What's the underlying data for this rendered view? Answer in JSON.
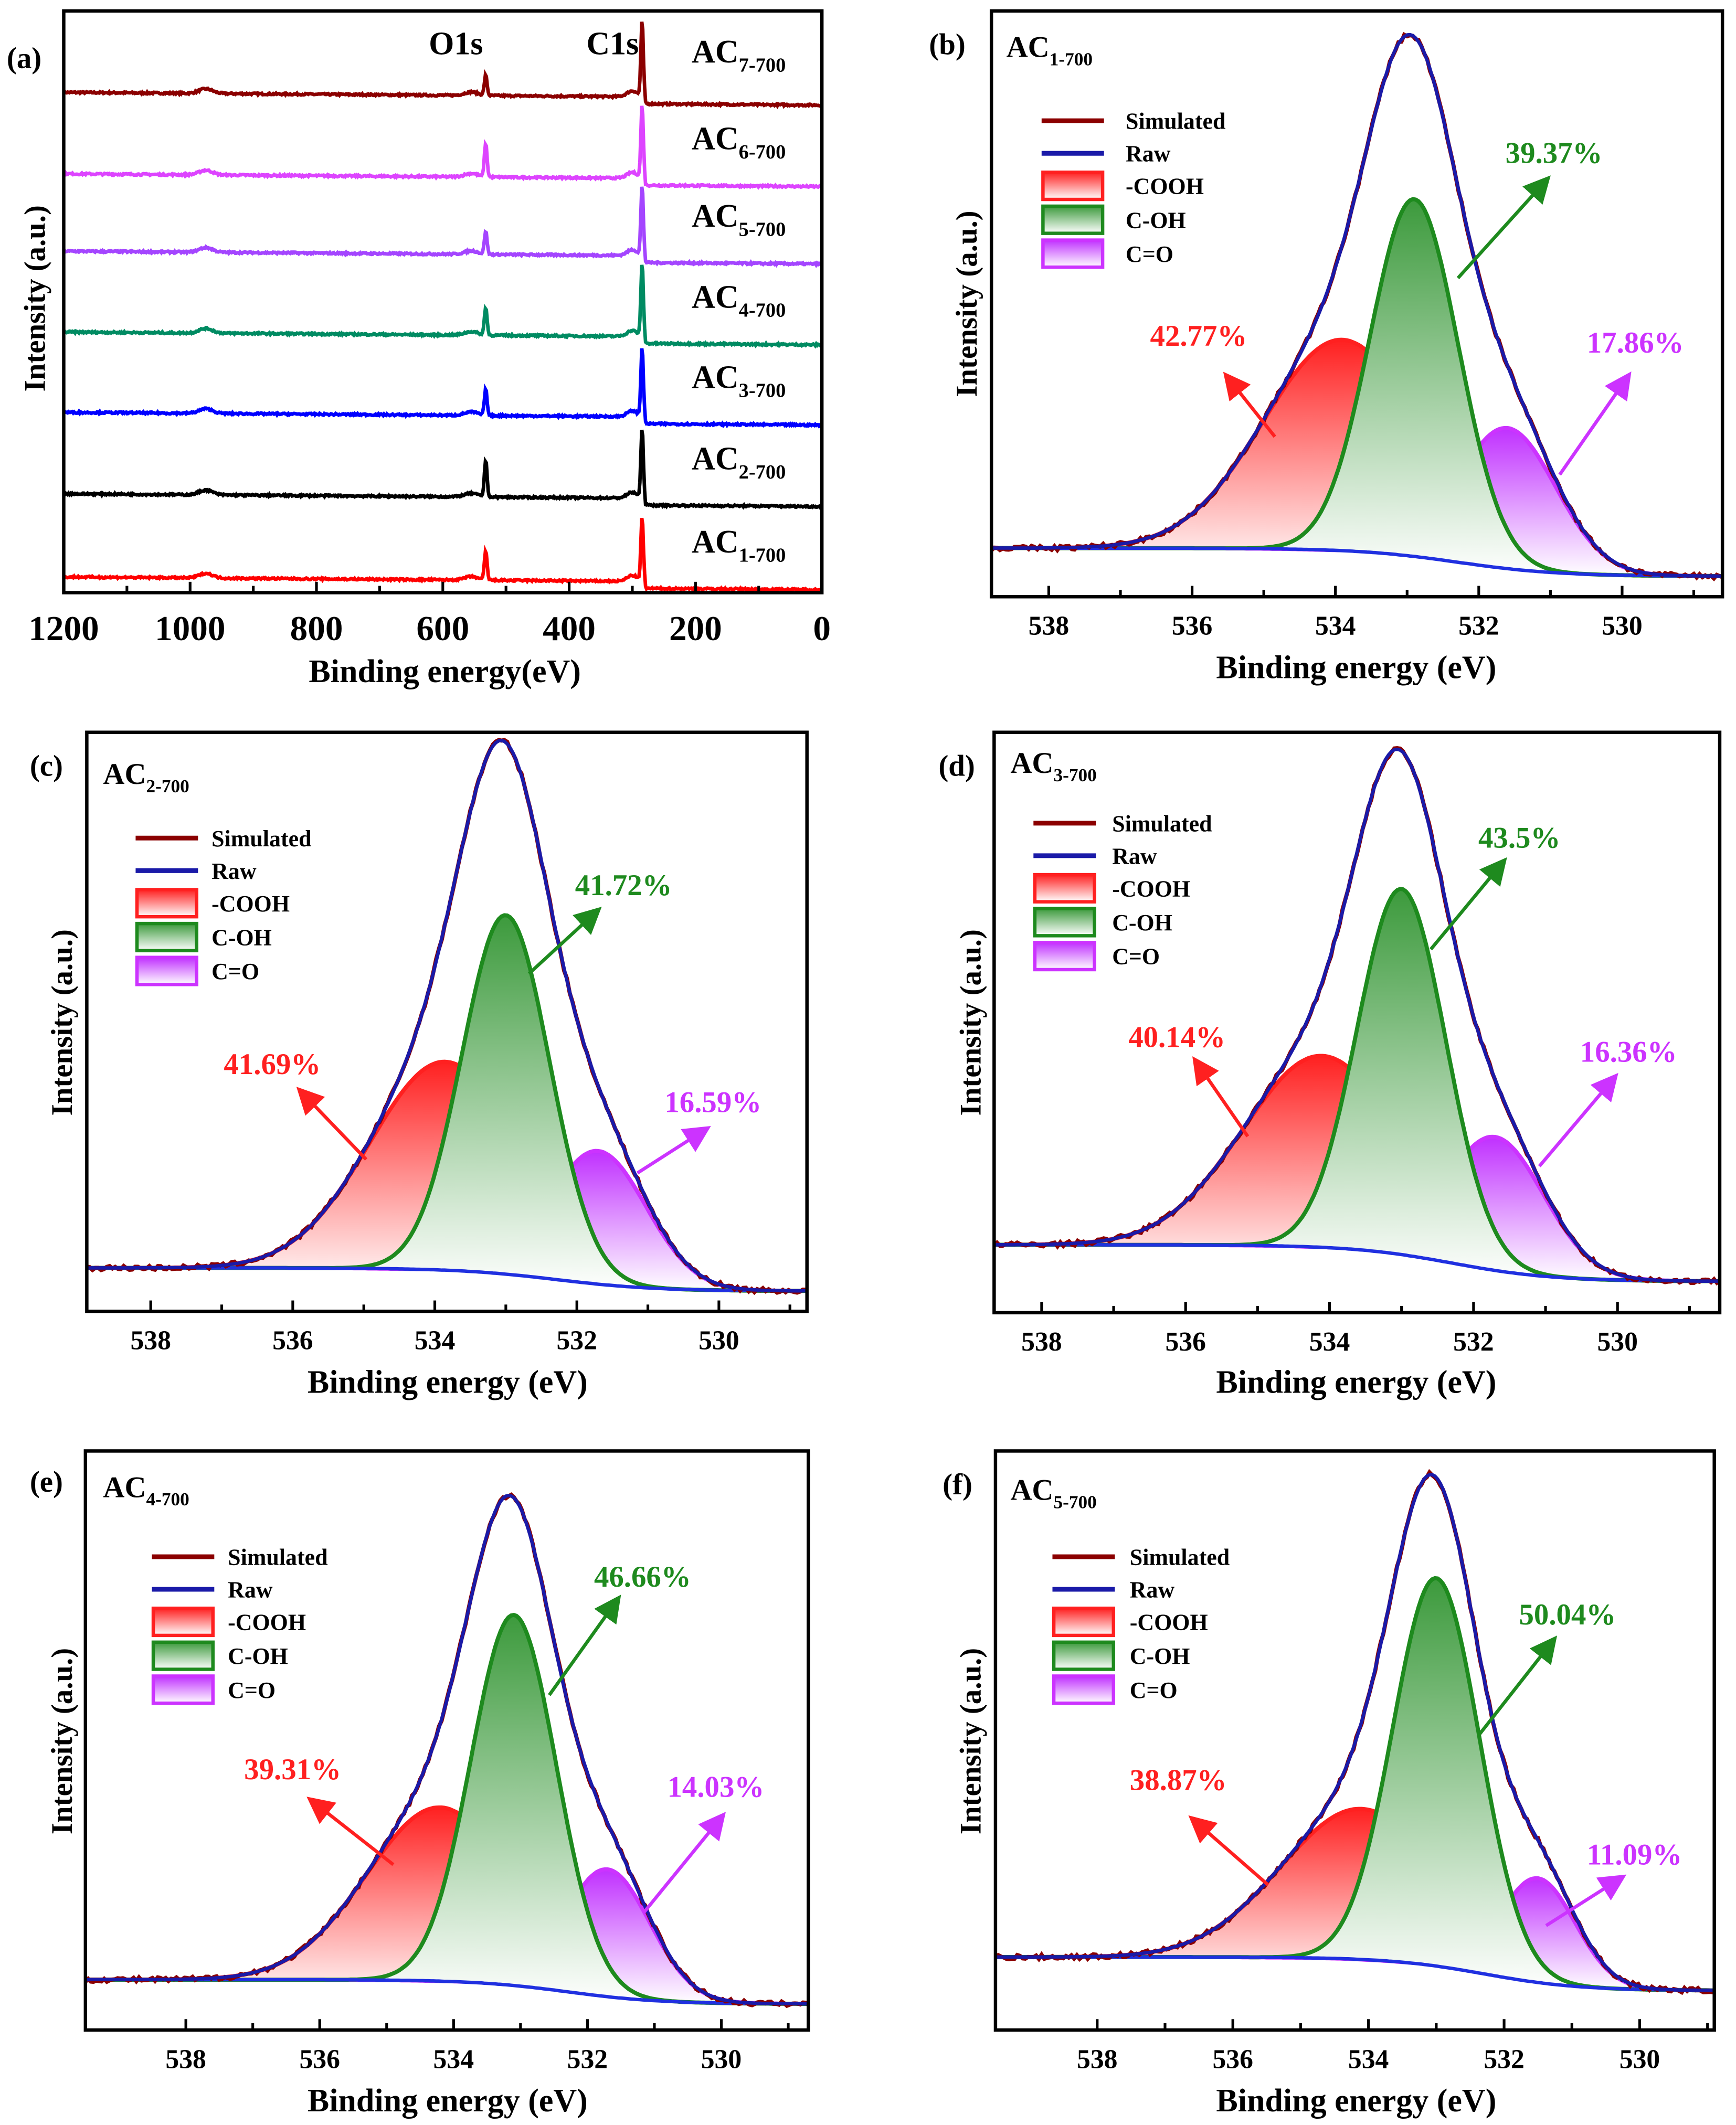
{
  "chart_data": [
    {
      "panel": "(a)",
      "type": "line",
      "xlabel": "Binding energy(eV)",
      "ylabel": "Intensity (a.u.)",
      "xlim": [
        1200,
        0
      ],
      "xticks": [
        1200,
        1000,
        800,
        600,
        400,
        200,
        0
      ],
      "peak_labels": [
        {
          "text": "O1s",
          "x": 532
        },
        {
          "text": "C1s",
          "x": 284
        }
      ],
      "series": [
        {
          "name": "AC",
          "sub": "7-700",
          "color": "#8b0000",
          "offset": 0.86,
          "o1s": 0.035,
          "c1s": 0.13
        },
        {
          "name": "AC",
          "sub": "6-700",
          "color": "#dd44ff",
          "offset": 0.72,
          "o1s": 0.058,
          "c1s": 0.126
        },
        {
          "name": "AC",
          "sub": "5-700",
          "color": "#a445ff",
          "offset": 0.587,
          "o1s": 0.04,
          "c1s": 0.12
        },
        {
          "name": "AC",
          "sub": "4-700",
          "color": "#008b62",
          "offset": 0.448,
          "o1s": 0.048,
          "c1s": 0.126
        },
        {
          "name": "AC",
          "sub": "3-700",
          "color": "#0000ff",
          "offset": 0.31,
          "o1s": 0.045,
          "c1s": 0.12
        },
        {
          "name": "AC",
          "sub": "2-700",
          "color": "#000000",
          "offset": 0.17,
          "o1s": 0.063,
          "c1s": 0.12
        },
        {
          "name": "AC",
          "sub": "1-700",
          "color": "#ff0000",
          "offset": 0.027,
          "o1s": 0.05,
          "c1s": 0.11
        }
      ]
    },
    {
      "panel": "(b)",
      "type": "area",
      "sample": {
        "name": "AC",
        "sub": "1-700"
      },
      "xlabel": "Binding energy (eV)",
      "ylabel": "Intensity (a.u.)",
      "xlim": [
        538.8,
        528.6
      ],
      "xticks": [
        538,
        536,
        534,
        532,
        530
      ],
      "baseline": [
        0.083,
        0.035
      ],
      "components": [
        {
          "name": "-COOH",
          "center": 533.9,
          "height": 0.36,
          "fwhm": 2.6,
          "percent": "42.77%"
        },
        {
          "name": "C=O",
          "center": 531.6,
          "height": 0.24,
          "fwhm": 1.6,
          "percent": "17.86%"
        },
        {
          "name": "C-OH",
          "center": 532.9,
          "height": 0.61,
          "fwhm": 1.45,
          "percent": "39.37%"
        }
      ]
    },
    {
      "panel": "(c)",
      "type": "area",
      "sample": {
        "name": "AC",
        "sub": "2-700"
      },
      "xlabel": "Binding energy (eV)",
      "ylabel": "Intensity (a.u.)",
      "xlim": [
        538.9,
        528.76
      ],
      "xticks": [
        538,
        536,
        534,
        532,
        530
      ],
      "baseline": [
        0.075,
        0.035
      ],
      "components": [
        {
          "name": "-COOH",
          "center": 533.85,
          "height": 0.36,
          "fwhm": 2.5,
          "percent": "41.69%"
        },
        {
          "name": "C=O",
          "center": 531.7,
          "height": 0.23,
          "fwhm": 1.6,
          "percent": "16.59%"
        },
        {
          "name": "C-OH",
          "center": 533.0,
          "height": 0.62,
          "fwhm": 1.45,
          "percent": "41.72%"
        }
      ]
    },
    {
      "panel": "(d)",
      "type": "area",
      "sample": {
        "name": "AC",
        "sub": "3-700"
      },
      "xlabel": "Binding energy (eV)",
      "ylabel": "Intensity (a.u.)",
      "xlim": [
        538.66,
        528.58
      ],
      "xticks": [
        538,
        536,
        534,
        532,
        530
      ],
      "baseline": [
        0.117,
        0.054
      ],
      "components": [
        {
          "name": "-COOH",
          "center": 534.1,
          "height": 0.33,
          "fwhm": 2.6,
          "percent": "40.14%"
        },
        {
          "name": "C=O",
          "center": 531.7,
          "height": 0.23,
          "fwhm": 1.6,
          "percent": "16.36%"
        },
        {
          "name": "C-OH",
          "center": 533.0,
          "height": 0.63,
          "fwhm": 1.45,
          "percent": "43.5%"
        }
      ]
    },
    {
      "panel": "(e)",
      "type": "area",
      "sample": {
        "name": "AC",
        "sub": "4-700"
      },
      "xlabel": "Binding energy (eV)",
      "ylabel": "Intensity (a.u.)",
      "xlim": [
        539.5,
        528.7
      ],
      "xticks": [
        538,
        536,
        534,
        532,
        530
      ],
      "baseline": [
        0.087,
        0.045
      ],
      "components": [
        {
          "name": "-COOH",
          "center": 534.2,
          "height": 0.3,
          "fwhm": 2.6,
          "percent": "39.31%"
        },
        {
          "name": "C=O",
          "center": 531.7,
          "height": 0.22,
          "fwhm": 1.5,
          "percent": "14.03%"
        },
        {
          "name": "C-OH",
          "center": 533.1,
          "height": 0.64,
          "fwhm": 1.5,
          "percent": "46.66%"
        }
      ]
    },
    {
      "panel": "(f)",
      "type": "area",
      "sample": {
        "name": "AC",
        "sub": "5-700"
      },
      "xlabel": "Binding energy (eV)",
      "ylabel": "Intensity (a.u.)",
      "xlim": [
        539.5,
        528.9
      ],
      "xticks": [
        538,
        536,
        534,
        532,
        530
      ],
      "baseline": [
        0.126,
        0.068
      ],
      "components": [
        {
          "name": "-COOH",
          "center": 534.1,
          "height": 0.26,
          "fwhm": 2.8,
          "percent": "38.87%"
        },
        {
          "name": "C=O",
          "center": 531.5,
          "height": 0.18,
          "fwhm": 1.3,
          "percent": "11.09%"
        },
        {
          "name": "C-OH",
          "center": 533.0,
          "height": 0.67,
          "fwhm": 1.5,
          "percent": "50.04%"
        }
      ]
    }
  ],
  "legend": {
    "lines": [
      {
        "label": "Simulated",
        "color": "#8b0000"
      },
      {
        "label": "Raw",
        "color": "#1a1aa8"
      }
    ],
    "boxes": [
      {
        "label": "-COOH",
        "color": "#ff2020"
      },
      {
        "label": "C-OH",
        "color": "#1e8a1e"
      },
      {
        "label": "C=O",
        "color": "#cc33ff"
      }
    ]
  },
  "colors": {
    "cooh": "#ff2020",
    "coh": "#1e8a1e",
    "co": "#cc33ff",
    "raw": "#1a1aa8",
    "simulated": "#8b0000",
    "baseline": "#2030e0"
  }
}
